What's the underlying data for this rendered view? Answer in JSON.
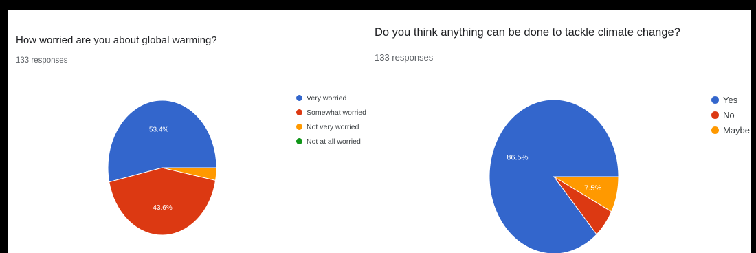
{
  "chart_data": [
    {
      "type": "pie",
      "title": "How worried are you about global warming?",
      "subtitle": "133 responses",
      "labels": [
        "Very worried",
        "Somewhat worried",
        "Not very worried",
        "Not at all worried"
      ],
      "values": [
        53.4,
        43.6,
        3.0,
        0
      ],
      "colors": [
        "#3366cc",
        "#dc3912",
        "#ff9900",
        "#109618"
      ],
      "data_labels": [
        "53.4%",
        "43.6%",
        "",
        ""
      ],
      "start_direction": "right",
      "legend_position": "right"
    },
    {
      "type": "pie",
      "title": "Do you think anything can be done to tackle climate change?",
      "subtitle": "133 responses",
      "labels": [
        "Yes",
        "No",
        "Maybe"
      ],
      "values": [
        86.5,
        6.0,
        7.5
      ],
      "colors": [
        "#3366cc",
        "#dc3912",
        "#ff9900"
      ],
      "data_labels": [
        "86.5%",
        "",
        "7.5%"
      ],
      "start_direction": "right",
      "legend_position": "right"
    }
  ]
}
